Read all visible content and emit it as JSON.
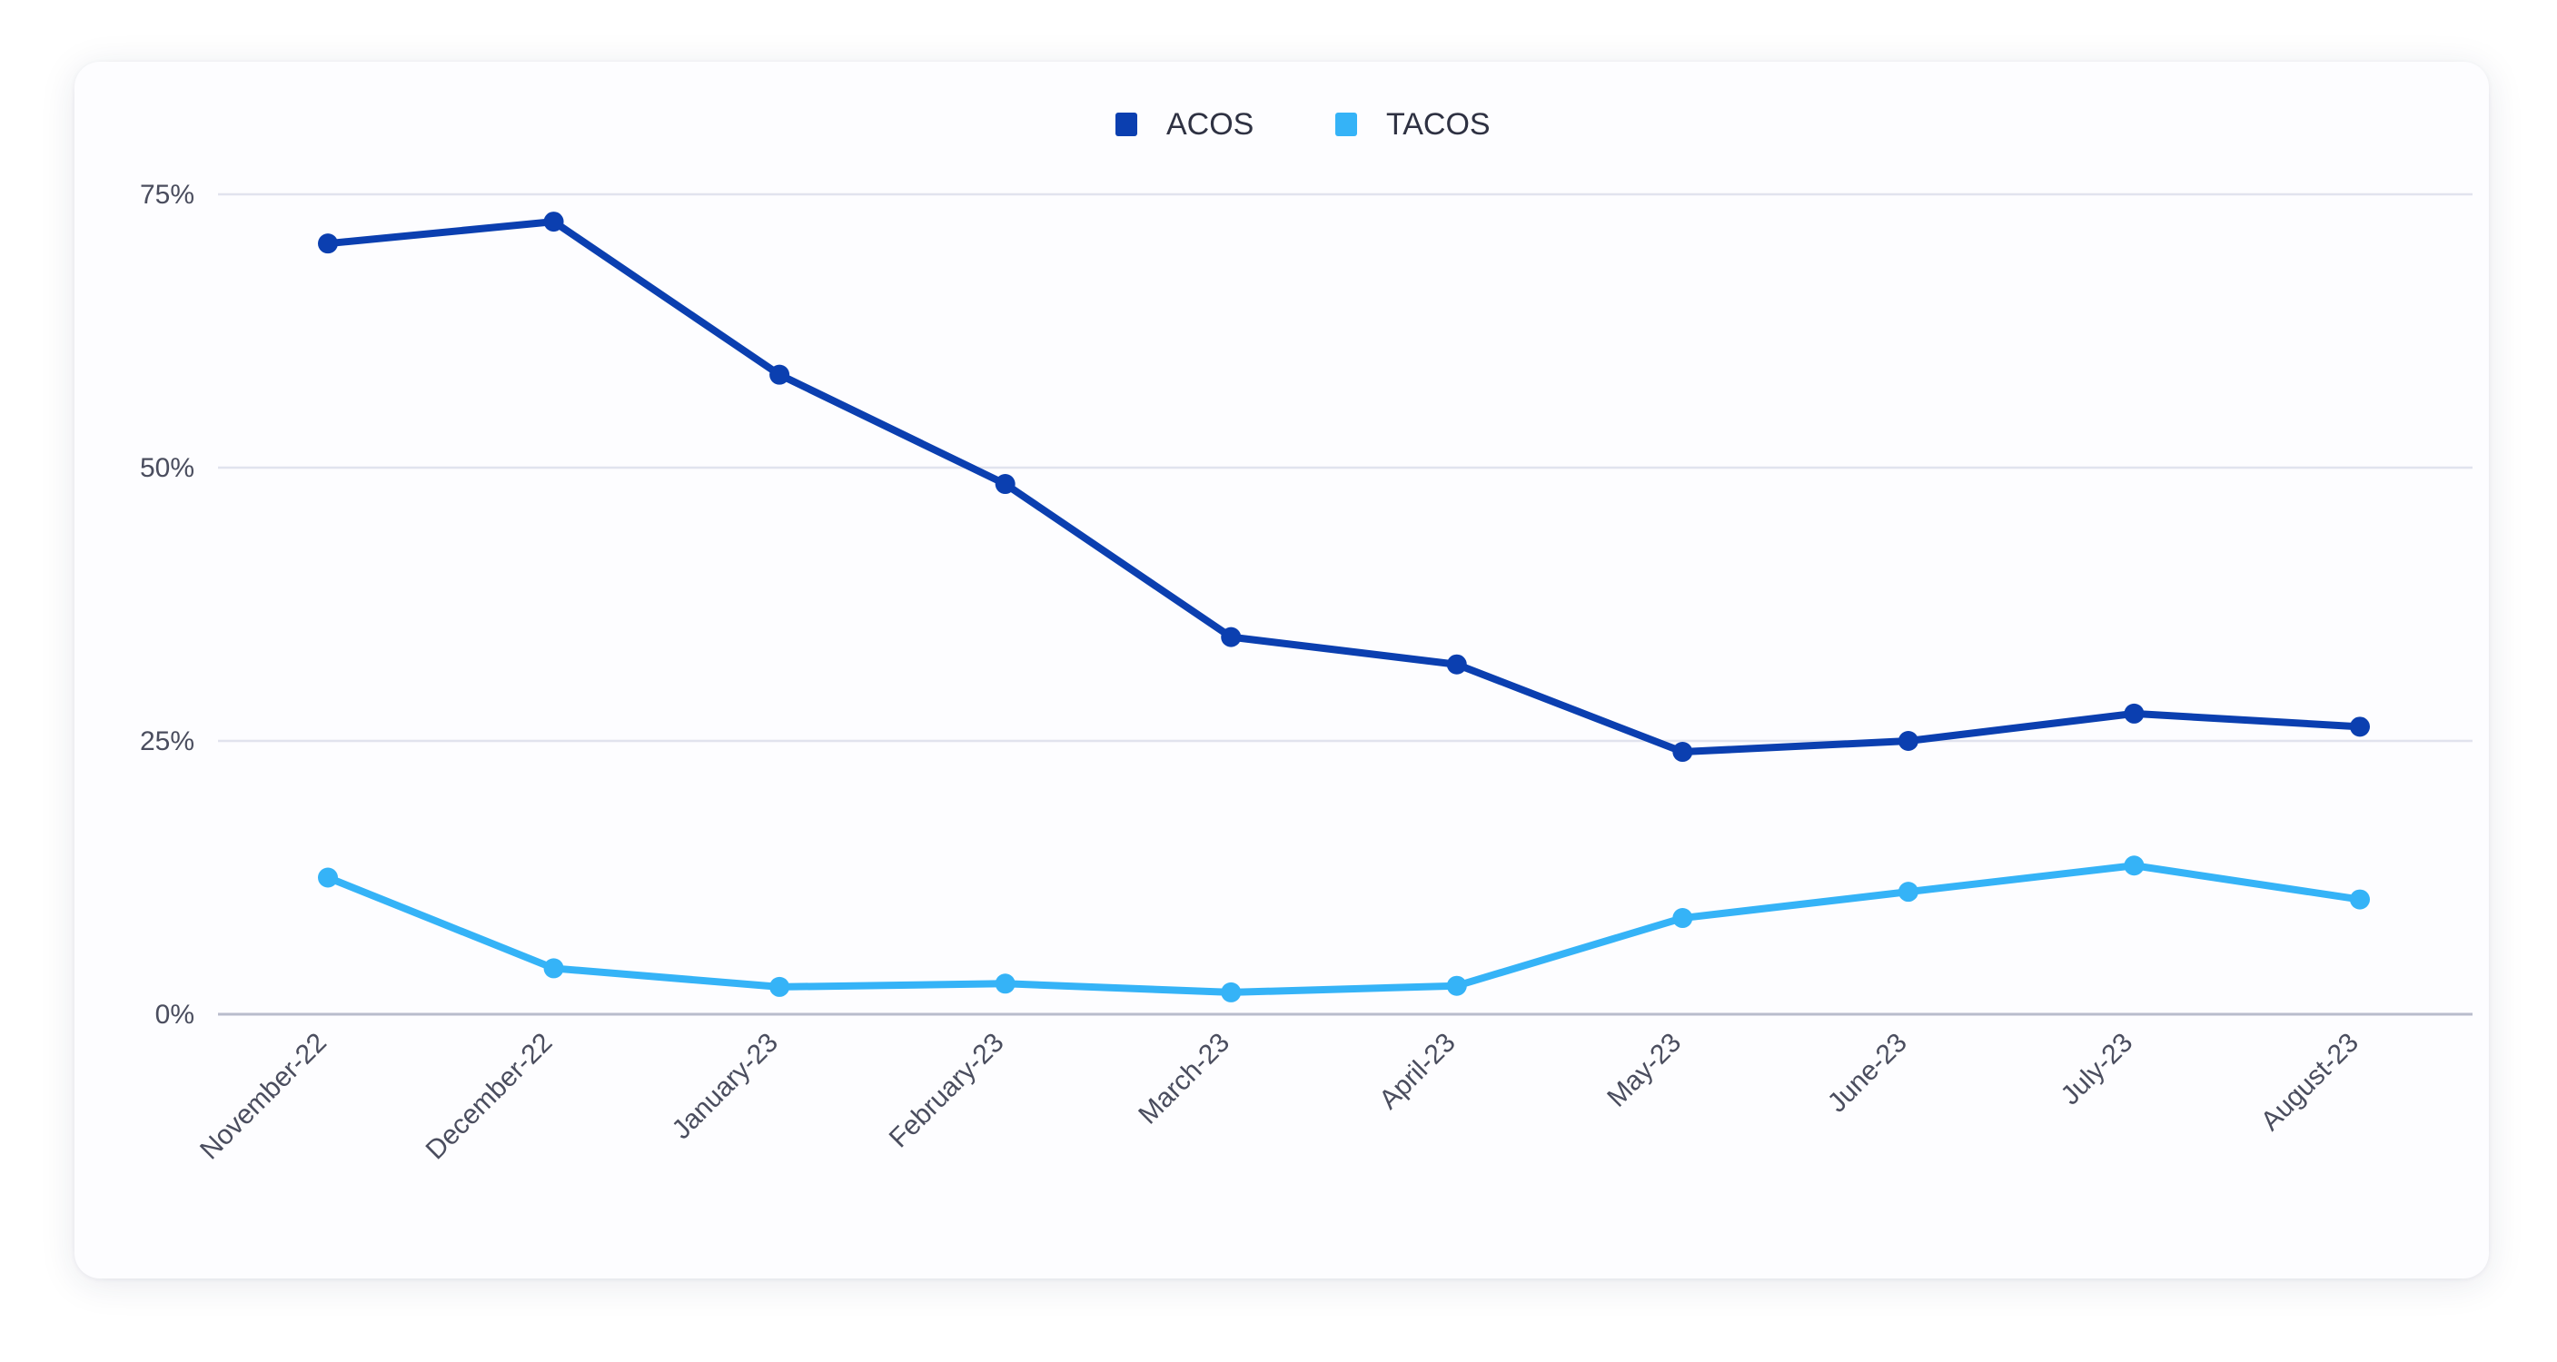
{
  "chart_data": {
    "type": "line",
    "categories": [
      "November-22",
      "December-22",
      "January-23",
      "February-23",
      "March-23",
      "April-23",
      "May-23",
      "June-23",
      "July-23",
      "August-23"
    ],
    "series": [
      {
        "name": "ACOS",
        "color": "#0b3fb0",
        "values": [
          70.5,
          72.5,
          58.5,
          48.5,
          34.5,
          32.0,
          24.0,
          25.0,
          27.5,
          26.3
        ]
      },
      {
        "name": "TACOS",
        "color": "#35b3f7",
        "values": [
          12.5,
          4.2,
          2.5,
          2.8,
          2.0,
          2.6,
          8.8,
          11.2,
          13.6,
          10.5
        ]
      }
    ],
    "yticks": [
      "0%",
      "25%",
      "50%",
      "75%"
    ],
    "ytick_values": [
      0,
      25,
      50,
      75
    ],
    "ylim": [
      0,
      75
    ],
    "grid": true,
    "legend_position": "top-center",
    "xlabel": "",
    "ylabel": ""
  }
}
